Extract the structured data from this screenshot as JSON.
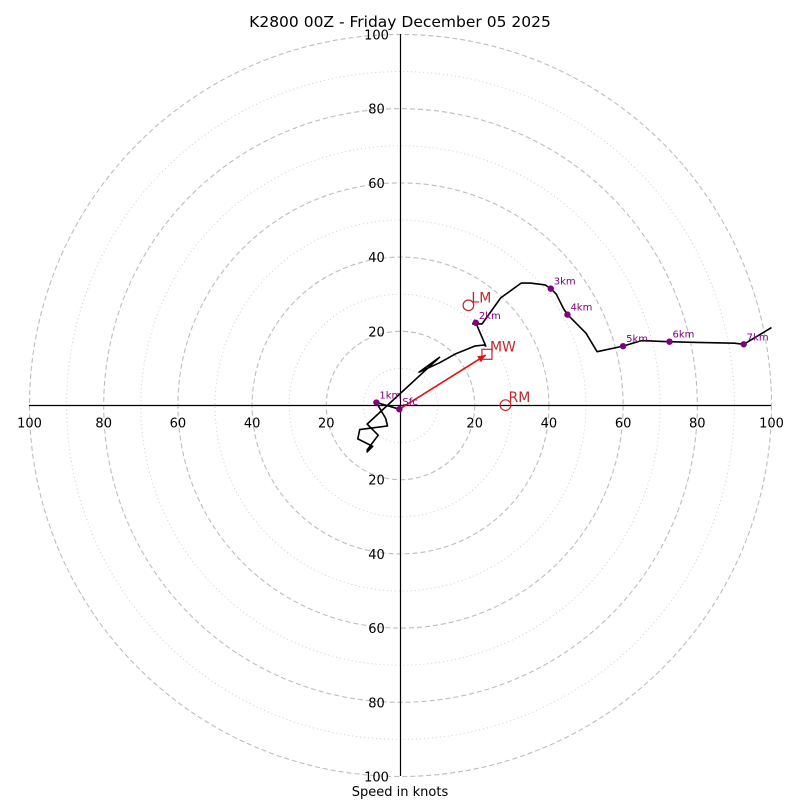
{
  "chart_data": {
    "type": "hodograph",
    "title": "K2800 00Z - Friday December 05 2025",
    "xlabel": "Speed in knots",
    "ylabel": "",
    "units": "knots",
    "xlim": [
      -100,
      100
    ],
    "ylim": [
      -100,
      100
    ],
    "grid": true,
    "ring_major_values": [
      20,
      40,
      60,
      80,
      100
    ],
    "ring_minor_values": [
      10,
      30,
      50,
      70,
      90
    ],
    "x_ticks": [
      {
        "value": -100,
        "label": "100"
      },
      {
        "value": -80,
        "label": "80"
      },
      {
        "value": -60,
        "label": "60"
      },
      {
        "value": -40,
        "label": "40"
      },
      {
        "value": -20,
        "label": "20"
      },
      {
        "value": 20,
        "label": "20"
      },
      {
        "value": 40,
        "label": "40"
      },
      {
        "value": 60,
        "label": "60"
      },
      {
        "value": 80,
        "label": "80"
      },
      {
        "value": 100,
        "label": "100"
      }
    ],
    "y_ticks": [
      {
        "value": 100,
        "label": "100"
      },
      {
        "value": 80,
        "label": "80"
      },
      {
        "value": 60,
        "label": "60"
      },
      {
        "value": 40,
        "label": "40"
      },
      {
        "value": 20,
        "label": "20"
      },
      {
        "value": -20,
        "label": "20"
      },
      {
        "value": -40,
        "label": "40"
      },
      {
        "value": -60,
        "label": "60"
      },
      {
        "value": -80,
        "label": "80"
      },
      {
        "value": -100,
        "label": "100"
      }
    ],
    "series": [
      {
        "name": "hodograph trace",
        "color": "#000000",
        "u": [
          -0.3,
          -6.5,
          -4,
          -3.5,
          -11,
          -11.5,
          -7.5,
          -9,
          -8,
          -9,
          -6,
          -9,
          10.5,
          5,
          10.5,
          15,
          20,
          22.5,
          23,
          20,
          19.5,
          22,
          27,
          32.5,
          35,
          39,
          40.5,
          42,
          44,
          45,
          50,
          53,
          60,
          65,
          72,
          80,
          90,
          92.5,
          100
        ],
        "v": [
          -1,
          0.8,
          -3.5,
          -5.5,
          -6.5,
          -9,
          -11,
          -12.5,
          -11,
          -12,
          -8,
          -5,
          13,
          9,
          11.5,
          14,
          16,
          16.3,
          16,
          23,
          22,
          22,
          29,
          33,
          33,
          32.5,
          31.5,
          30,
          26,
          24.5,
          19.5,
          14.5,
          16,
          17.5,
          17.2,
          17,
          16.8,
          16.5,
          21
        ]
      }
    ],
    "height_markers": [
      {
        "label": "Sfc",
        "u": -0.3,
        "v": -1
      },
      {
        "label": "1km",
        "u": -6.5,
        "v": 0.8
      },
      {
        "label": "2km",
        "u": 20.3,
        "v": 22.3
      },
      {
        "label": "3km",
        "u": 40.5,
        "v": 31.5
      },
      {
        "label": "4km",
        "u": 45,
        "v": 24.5
      },
      {
        "label": "5km",
        "u": 60,
        "v": 16
      },
      {
        "label": "6km",
        "u": 72.5,
        "v": 17.2
      },
      {
        "label": "7km",
        "u": 92.5,
        "v": 16.5
      }
    ],
    "storm_motion": [
      {
        "label": "LM",
        "shape": "circle",
        "u": 18.3,
        "v": 27
      },
      {
        "label": "MW",
        "shape": "square",
        "u": 23.3,
        "v": 13.8
      },
      {
        "label": "RM",
        "shape": "circle",
        "u": 28.3,
        "v": 0.1
      }
    ],
    "shear_vector": {
      "from_u": -0.3,
      "from_v": -1,
      "to_u": 23,
      "to_v": 13.6,
      "color": "#e01010"
    }
  }
}
